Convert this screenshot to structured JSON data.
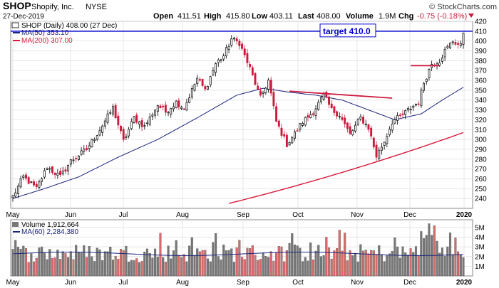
{
  "header": {
    "symbol": "SHOP",
    "company": "Shopify, Inc.",
    "exchange": "NYSE",
    "date": "27-Dec-2019",
    "open_label": "Open",
    "open": "411.51",
    "high_label": "High",
    "high": "415.80",
    "low_label": "Low",
    "low": "403.11",
    "last_label": "Last",
    "last": "408.00",
    "volume_label": "Volume",
    "volume": "1.9M",
    "chg_label": "Chg",
    "chg": "-0.75 (-0.18%)",
    "watermark": "© StockCharts.com"
  },
  "colors": {
    "up": "#000000",
    "down": "#cc1a3d",
    "ma50": "#1a237e",
    "ma200": "#d81b3c",
    "target": "#0000cc",
    "grid": "#dddddd",
    "vol_up": "#777777",
    "vol_down": "#d96a6a"
  },
  "chart_data": [
    {
      "type": "candlestick",
      "legend": [
        {
          "label": "SHOP (Daily) 408.00 (27 Dec)",
          "color": "#000000"
        },
        {
          "label": "MA(50) 353.10",
          "color": "#1a237e"
        },
        {
          "label": "MA(200) 307.00",
          "color": "#d81b3c"
        }
      ],
      "ylim": [
        230,
        420
      ],
      "y_ticks": [
        240,
        250,
        260,
        270,
        280,
        290,
        300,
        310,
        320,
        330,
        340,
        350,
        360,
        370,
        380,
        390,
        400,
        410,
        420
      ],
      "x_ticks": [
        "May",
        "Jun",
        "Jul",
        "Aug",
        "Sep",
        "Oct",
        "Nov",
        "Dec",
        "2020"
      ],
      "price_anchors": [
        [
          0,
          242
        ],
        [
          4,
          262
        ],
        [
          9,
          250
        ],
        [
          13,
          272
        ],
        [
          18,
          262
        ],
        [
          22,
          278
        ],
        [
          28,
          290
        ],
        [
          33,
          310
        ],
        [
          38,
          332
        ],
        [
          42,
          298
        ],
        [
          46,
          322
        ],
        [
          50,
          313
        ],
        [
          55,
          335
        ],
        [
          58,
          328
        ],
        [
          62,
          338
        ],
        [
          65,
          332
        ],
        [
          70,
          362
        ],
        [
          73,
          350
        ],
        [
          77,
          377
        ],
        [
          80,
          385
        ],
        [
          83,
          402
        ],
        [
          86,
          398
        ],
        [
          90,
          372
        ],
        [
          94,
          342
        ],
        [
          97,
          360
        ],
        [
          100,
          318
        ],
        [
          104,
          295
        ],
        [
          106,
          302
        ],
        [
          110,
          318
        ],
        [
          114,
          328
        ],
        [
          118,
          345
        ],
        [
          121,
          330
        ],
        [
          124,
          325
        ],
        [
          128,
          305
        ],
        [
          132,
          322
        ],
        [
          135,
          312
        ],
        [
          138,
          283
        ],
        [
          141,
          298
        ],
        [
          144,
          318
        ],
        [
          148,
          325
        ],
        [
          151,
          332
        ],
        [
          154,
          338
        ],
        [
          156,
          358
        ],
        [
          159,
          377
        ],
        [
          162,
          380
        ],
        [
          164,
          390
        ],
        [
          167,
          400
        ],
        [
          170,
          395
        ],
        [
          171,
          408
        ]
      ],
      "ma50": {
        "name": "MA(50)",
        "start": 240,
        "end": 353.1,
        "anchors": [
          [
            0,
            240
          ],
          [
            12,
            250
          ],
          [
            25,
            262
          ],
          [
            40,
            282
          ],
          [
            55,
            300
          ],
          [
            70,
            322
          ],
          [
            85,
            345
          ],
          [
            95,
            352
          ],
          [
            105,
            348
          ],
          [
            115,
            345
          ],
          [
            125,
            340
          ],
          [
            135,
            330
          ],
          [
            145,
            320
          ],
          [
            155,
            326
          ],
          [
            163,
            340
          ],
          [
            171,
            353
          ]
        ]
      },
      "ma200": {
        "name": "MA(200)",
        "start_index": 82,
        "start": 235,
        "end": 307.0
      },
      "annotations": [
        {
          "type": "hline",
          "y": 410,
          "label": "target 410.0"
        },
        {
          "type": "trendline",
          "from": [
            105,
            349
          ],
          "to": [
            144,
            342
          ],
          "color": "#cc1a3d"
        },
        {
          "type": "trendline",
          "from": [
            151,
            375
          ],
          "to": [
            162,
            375
          ],
          "color": "#cc1a3d"
        }
      ]
    },
    {
      "type": "bar",
      "name": "Volume 1,912,664",
      "legend": [
        {
          "label": "Volume 1,912,664",
          "color": "#777777"
        },
        {
          "label": "MA(60) 2,284,380",
          "color": "#1a237e"
        }
      ],
      "ylim": [
        0,
        5.8
      ],
      "y_ticks": [
        "1M",
        "2M",
        "3M",
        "4M",
        "5M"
      ],
      "y_tick_values": [
        1,
        2,
        3,
        4,
        5
      ],
      "unit": "M",
      "ma60": {
        "name": "MA(60)",
        "value": 2.28
      },
      "x_ticks": [
        "May",
        "Jun",
        "Jul",
        "Aug",
        "Sep",
        "Oct",
        "Nov",
        "Dec",
        "2020"
      ]
    }
  ]
}
